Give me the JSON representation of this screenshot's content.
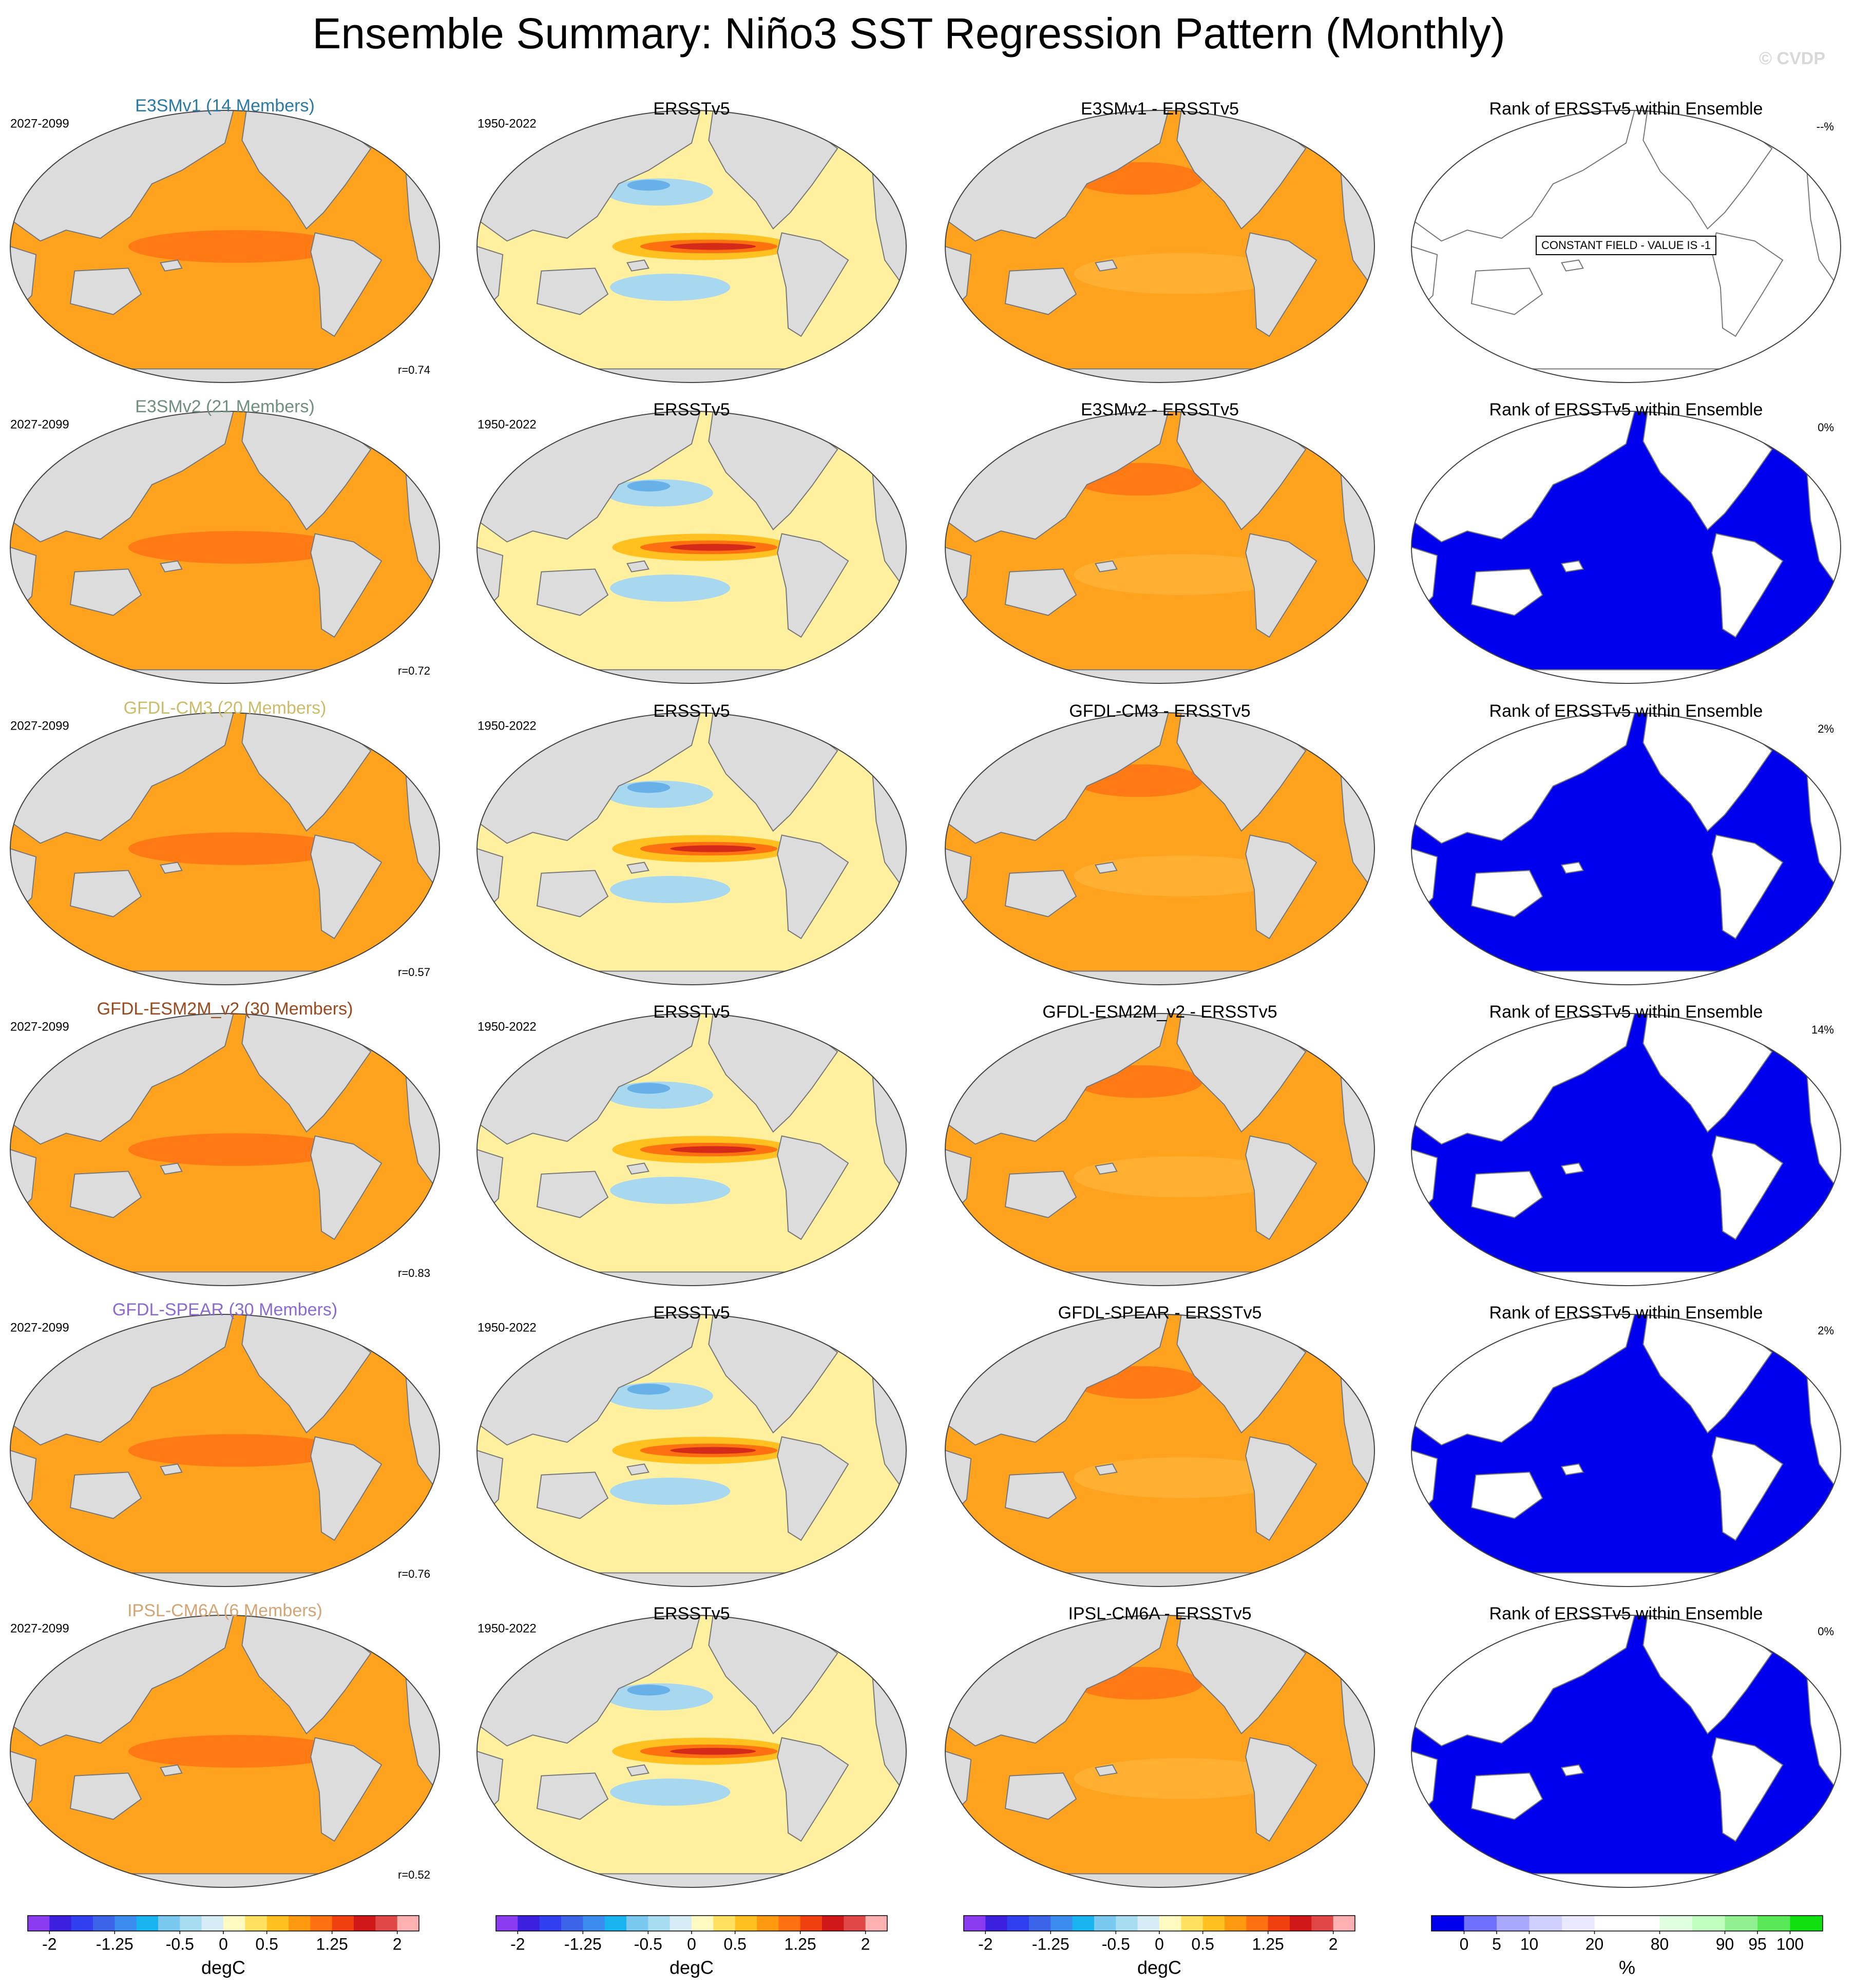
{
  "title": "Ensemble Summary: Niño3 SST Regression Pattern (Monthly)",
  "watermark": "© CVDP",
  "rows": [
    {
      "model": {
        "title": "E3SMv1 (14 Members)",
        "color": "#2a7aa6",
        "period": "2027-2099",
        "r": "r=0.74"
      },
      "obs": {
        "title": "ERSSTv5",
        "period": "1950-2022"
      },
      "diff": {
        "title": "E3SMv1 - ERSSTv5"
      },
      "rank": {
        "title": "Rank of ERSSTv5 within Ensemble",
        "percent": "--%",
        "note": "CONSTANT FIELD - VALUE IS -1"
      }
    },
    {
      "model": {
        "title": "E3SMv2 (21 Members)",
        "color": "#6f8f7f",
        "period": "2027-2099",
        "r": "r=0.72"
      },
      "obs": {
        "title": "ERSSTv5",
        "period": "1950-2022"
      },
      "diff": {
        "title": "E3SMv2 - ERSSTv5"
      },
      "rank": {
        "title": "Rank of ERSSTv5 within Ensemble",
        "percent": "0%"
      }
    },
    {
      "model": {
        "title": "GFDL-CM3 (20 Members)",
        "color": "#cdbb6a",
        "period": "2027-2099",
        "r": "r=0.57"
      },
      "obs": {
        "title": "ERSSTv5",
        "period": "1950-2022"
      },
      "diff": {
        "title": "GFDL-CM3 - ERSSTv5"
      },
      "rank": {
        "title": "Rank of ERSSTv5 within Ensemble",
        "percent": "2%"
      }
    },
    {
      "model": {
        "title": "GFDL-ESM2M_v2 (30 Members)",
        "color": "#9a4a1e",
        "period": "2027-2099",
        "r": "r=0.83"
      },
      "obs": {
        "title": "ERSSTv5",
        "period": "1950-2022"
      },
      "diff": {
        "title": "GFDL-ESM2M_v2 - ERSSTv5"
      },
      "rank": {
        "title": "Rank of ERSSTv5 within Ensemble",
        "percent": "14%"
      }
    },
    {
      "model": {
        "title": "GFDL-SPEAR (30 Members)",
        "color": "#8b6bd1",
        "period": "2027-2099",
        "r": "r=0.76"
      },
      "obs": {
        "title": "ERSSTv5",
        "period": "1950-2022"
      },
      "diff": {
        "title": "GFDL-SPEAR - ERSSTv5"
      },
      "rank": {
        "title": "Rank of ERSSTv5 within Ensemble",
        "percent": "2%"
      }
    },
    {
      "model": {
        "title": "IPSL-CM6A (6 Members)",
        "color": "#d4a474",
        "period": "2027-2099",
        "r": "r=0.52"
      },
      "obs": {
        "title": "ERSSTv5",
        "period": "1950-2022"
      },
      "diff": {
        "title": "IPSL-CM6A - ERSSTv5"
      },
      "rank": {
        "title": "Rank of ERSSTv5 within Ensemble",
        "percent": "0%"
      }
    }
  ],
  "colorbars": [
    {
      "unit": "degC",
      "levels": [
        -2,
        null,
        null,
        -1.25,
        null,
        null,
        -0.5,
        null,
        0,
        null,
        0.5,
        null,
        null,
        1.25,
        null,
        null,
        2
      ],
      "colors": [
        "#8c3cf0",
        "#3c20e0",
        "#3040f0",
        "#3c64e8",
        "#3c8cf0",
        "#18b4f0",
        "#78c8f0",
        "#a8dcf0",
        "#d8ecf8",
        "#fffac0",
        "#ffe060",
        "#ffc020",
        "#ff9a10",
        "#ff7010",
        "#f04010",
        "#d01818",
        "#e04848",
        "#ffb0b0"
      ]
    },
    {
      "unit": "degC",
      "levels": [
        -2,
        null,
        null,
        -1.25,
        null,
        null,
        -0.5,
        null,
        0,
        null,
        0.5,
        null,
        null,
        1.25,
        null,
        null,
        2
      ],
      "colors": [
        "#8c3cf0",
        "#3c20e0",
        "#3040f0",
        "#3c64e8",
        "#3c8cf0",
        "#18b4f0",
        "#78c8f0",
        "#a8dcf0",
        "#d8ecf8",
        "#fffac0",
        "#ffe060",
        "#ffc020",
        "#ff9a10",
        "#ff7010",
        "#f04010",
        "#d01818",
        "#e04848",
        "#ffb0b0"
      ]
    },
    {
      "unit": "degC",
      "levels": [
        -2,
        null,
        null,
        -1.25,
        null,
        null,
        -0.5,
        null,
        0,
        null,
        0.5,
        null,
        null,
        1.25,
        null,
        null,
        2
      ],
      "colors": [
        "#8c3cf0",
        "#3c20e0",
        "#3040f0",
        "#3c64e8",
        "#3c8cf0",
        "#18b4f0",
        "#78c8f0",
        "#a8dcf0",
        "#d8ecf8",
        "#fffac0",
        "#ffe060",
        "#ffc020",
        "#ff9a10",
        "#ff7010",
        "#f04010",
        "#d01818",
        "#e04848",
        "#ffb0b0"
      ]
    },
    {
      "unit": "%",
      "levels": [
        0,
        5,
        10,
        null,
        20,
        null,
        80,
        null,
        90,
        95,
        100
      ],
      "colors": [
        "#0000ee",
        "#7070ff",
        "#a8a8ff",
        "#d0d0ff",
        "#e8e8ff",
        "#ffffff",
        "#ffffff",
        "#e0ffe0",
        "#c0ffc0",
        "#90f090",
        "#58e858",
        "#10e010"
      ]
    }
  ]
}
